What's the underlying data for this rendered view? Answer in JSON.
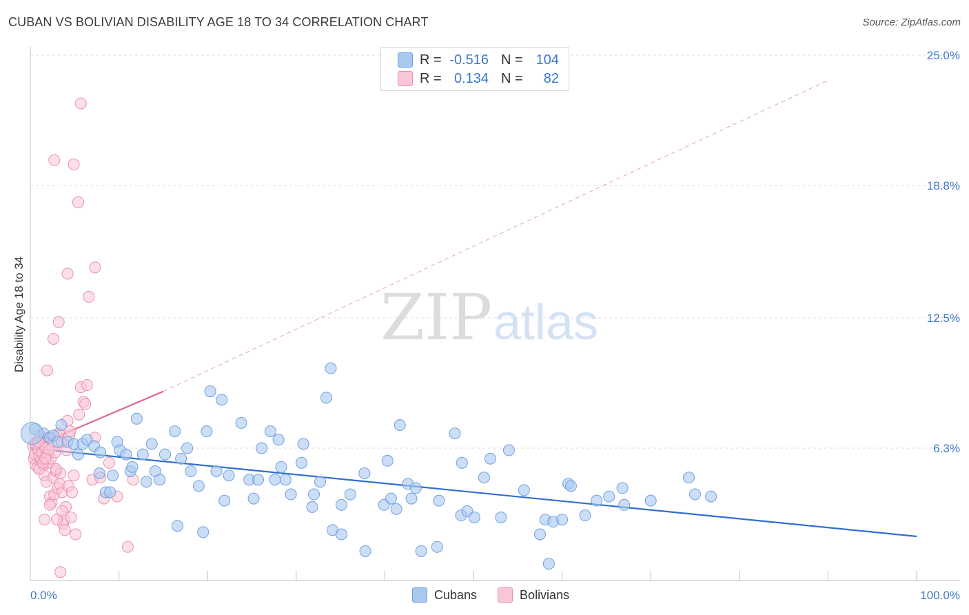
{
  "title": "CUBAN VS BOLIVIAN DISABILITY AGE 18 TO 34 CORRELATION CHART",
  "source": "Source: ZipAtlas.com",
  "watermark": {
    "zip": "ZIP",
    "atlas": "atlas"
  },
  "legend": {
    "rows": [
      {
        "r_label": "R =",
        "r_value": "-0.516",
        "n_label": "N =",
        "n_value": "104",
        "color": "#a9c8f0",
        "border": "#6fa0e0"
      },
      {
        "r_label": "R =",
        "r_value": "0.134",
        "n_label": "N =",
        "n_value": "82",
        "color": "#f9c6d6",
        "border": "#ec8faf"
      }
    ]
  },
  "bottom_legend": [
    {
      "label": "Cubans",
      "color": "#a9c8f0",
      "border": "#6fa0e0"
    },
    {
      "label": "Bolivians",
      "color": "#f9c6d6",
      "border": "#ec8faf"
    }
  ],
  "chart_data": {
    "type": "scatter",
    "title": "CUBAN VS BOLIVIAN DISABILITY AGE 18 TO 34 CORRELATION CHART",
    "xlabel": "",
    "ylabel": "Disability Age 18 to 34",
    "xlim": [
      0,
      100
    ],
    "ylim": [
      0,
      25
    ],
    "x_tick_labels": [
      "0.0%",
      "100.0%"
    ],
    "y_ticks": [
      6.3,
      12.5,
      18.8,
      25.0
    ],
    "y_tick_labels": [
      "6.3%",
      "12.5%",
      "18.8%",
      "25.0%"
    ],
    "grid": true,
    "series": [
      {
        "name": "Cubans",
        "color": "#6fa0e0",
        "fill": "#a9c8f0",
        "trend": {
          "x0": 0,
          "y0": 6.3,
          "x1": 100,
          "y1": 2.1,
          "color": "#2f6fcf"
        },
        "points": [
          [
            0.5,
            7.2
          ],
          [
            1.5,
            7.0
          ],
          [
            2.2,
            6.8
          ],
          [
            2.6,
            6.9
          ],
          [
            3.1,
            6.6
          ],
          [
            3.5,
            7.4
          ],
          [
            4.2,
            6.6
          ],
          [
            4.9,
            6.5
          ],
          [
            5.4,
            6.0
          ],
          [
            5.9,
            6.5
          ],
          [
            6.4,
            6.7
          ],
          [
            7.2,
            6.4
          ],
          [
            7.8,
            5.1
          ],
          [
            7.9,
            6.1
          ],
          [
            8.5,
            4.2
          ],
          [
            9.0,
            4.2
          ],
          [
            9.3,
            5.0
          ],
          [
            9.8,
            6.6
          ],
          [
            10.1,
            6.2
          ],
          [
            10.8,
            6.0
          ],
          [
            11.3,
            5.2
          ],
          [
            11.5,
            5.4
          ],
          [
            12.0,
            7.7
          ],
          [
            12.7,
            6.0
          ],
          [
            13.1,
            4.7
          ],
          [
            13.7,
            6.5
          ],
          [
            14.1,
            5.2
          ],
          [
            14.6,
            4.8
          ],
          [
            15.2,
            6.0
          ],
          [
            16.3,
            7.1
          ],
          [
            16.6,
            2.6
          ],
          [
            17.0,
            5.8
          ],
          [
            17.7,
            6.3
          ],
          [
            18.1,
            5.2
          ],
          [
            19.0,
            4.5
          ],
          [
            19.5,
            2.3
          ],
          [
            19.9,
            7.1
          ],
          [
            20.3,
            9.0
          ],
          [
            21.0,
            5.2
          ],
          [
            21.6,
            8.6
          ],
          [
            21.9,
            3.8
          ],
          [
            22.4,
            5.0
          ],
          [
            23.8,
            7.5
          ],
          [
            24.7,
            4.8
          ],
          [
            25.2,
            3.9
          ],
          [
            25.7,
            4.8
          ],
          [
            26.1,
            6.3
          ],
          [
            27.1,
            7.1
          ],
          [
            27.6,
            4.8
          ],
          [
            28.0,
            6.7
          ],
          [
            28.3,
            5.4
          ],
          [
            28.8,
            4.8
          ],
          [
            29.4,
            4.1
          ],
          [
            30.6,
            5.6
          ],
          [
            30.8,
            6.5
          ],
          [
            31.8,
            3.5
          ],
          [
            32.0,
            4.1
          ],
          [
            32.7,
            4.7
          ],
          [
            33.4,
            8.7
          ],
          [
            33.9,
            10.1
          ],
          [
            34.1,
            2.4
          ],
          [
            35.1,
            2.2
          ],
          [
            35.1,
            3.6
          ],
          [
            36.1,
            4.1
          ],
          [
            37.7,
            5.1
          ],
          [
            37.8,
            1.4
          ],
          [
            39.9,
            3.6
          ],
          [
            40.3,
            5.7
          ],
          [
            40.7,
            3.9
          ],
          [
            41.3,
            3.4
          ],
          [
            41.7,
            7.4
          ],
          [
            42.6,
            4.6
          ],
          [
            43.0,
            3.9
          ],
          [
            43.5,
            4.4
          ],
          [
            44.1,
            1.4
          ],
          [
            45.9,
            1.6
          ],
          [
            46.1,
            3.8
          ],
          [
            47.9,
            7.0
          ],
          [
            48.6,
            3.1
          ],
          [
            48.7,
            5.6
          ],
          [
            49.3,
            3.3
          ],
          [
            50.1,
            3.0
          ],
          [
            51.2,
            4.9
          ],
          [
            51.9,
            5.8
          ],
          [
            53.1,
            3.0
          ],
          [
            54.0,
            6.2
          ],
          [
            55.7,
            4.3
          ],
          [
            57.5,
            2.2
          ],
          [
            58.1,
            2.9
          ],
          [
            58.5,
            0.8
          ],
          [
            59.0,
            2.8
          ],
          [
            60.0,
            2.9
          ],
          [
            60.7,
            4.6
          ],
          [
            61.0,
            4.5
          ],
          [
            62.6,
            3.1
          ],
          [
            63.9,
            3.8
          ],
          [
            65.3,
            4.0
          ],
          [
            66.8,
            4.4
          ],
          [
            67.0,
            3.6
          ],
          [
            70.0,
            3.8
          ],
          [
            74.3,
            4.9
          ],
          [
            75.0,
            4.1
          ],
          [
            76.8,
            4.0
          ],
          [
            0.2,
            7.0
          ]
        ]
      },
      {
        "name": "Bolivians",
        "color": "#ec8faf",
        "fill": "#f9c6d6",
        "trend": {
          "x0": 0,
          "y0": 6.3,
          "x1": 15,
          "y1": 9.0,
          "dash_to_x": 90,
          "dash_to_y": 23.8,
          "color": "#e06890"
        },
        "points": [
          [
            0.3,
            6.4
          ],
          [
            0.4,
            5.8
          ],
          [
            0.5,
            6.0
          ],
          [
            0.6,
            5.5
          ],
          [
            0.7,
            6.6
          ],
          [
            0.8,
            5.4
          ],
          [
            0.9,
            6.2
          ],
          [
            1.0,
            5.9
          ],
          [
            1.1,
            6.9
          ],
          [
            1.2,
            5.7
          ],
          [
            1.3,
            6.1
          ],
          [
            1.4,
            6.7
          ],
          [
            1.5,
            5.5
          ],
          [
            1.6,
            5.0
          ],
          [
            1.7,
            6.3
          ],
          [
            1.8,
            4.7
          ],
          [
            1.9,
            6.0
          ],
          [
            2.0,
            5.6
          ],
          [
            2.1,
            6.8
          ],
          [
            2.2,
            4.0
          ],
          [
            2.3,
            5.8
          ],
          [
            2.4,
            3.7
          ],
          [
            2.5,
            6.4
          ],
          [
            2.6,
            4.9
          ],
          [
            2.7,
            4.1
          ],
          [
            2.8,
            6.1
          ],
          [
            2.9,
            5.2
          ],
          [
            3.0,
            6.9
          ],
          [
            3.1,
            4.4
          ],
          [
            3.2,
            7.0
          ],
          [
            3.3,
            4.6
          ],
          [
            3.4,
            5.1
          ],
          [
            3.5,
            6.6
          ],
          [
            3.6,
            4.2
          ],
          [
            3.7,
            2.7
          ],
          [
            3.8,
            2.9
          ],
          [
            3.9,
            2.4
          ],
          [
            4.0,
            3.5
          ],
          [
            4.1,
            6.2
          ],
          [
            4.2,
            7.6
          ],
          [
            4.3,
            4.5
          ],
          [
            4.4,
            6.9
          ],
          [
            4.5,
            7.1
          ],
          [
            4.7,
            4.2
          ],
          [
            4.9,
            5.0
          ],
          [
            5.1,
            2.2
          ],
          [
            5.5,
            7.9
          ],
          [
            5.7,
            9.2
          ],
          [
            6.0,
            8.5
          ],
          [
            6.2,
            8.4
          ],
          [
            6.4,
            9.3
          ],
          [
            7.0,
            4.8
          ],
          [
            7.3,
            6.8
          ],
          [
            7.9,
            4.9
          ],
          [
            8.3,
            3.9
          ],
          [
            8.9,
            5.6
          ],
          [
            9.8,
            4.0
          ],
          [
            11.0,
            1.6
          ],
          [
            11.6,
            4.8
          ],
          [
            3.2,
            12.3
          ],
          [
            2.6,
            11.5
          ],
          [
            2.7,
            20.0
          ],
          [
            4.9,
            19.8
          ],
          [
            5.4,
            18.0
          ],
          [
            5.7,
            22.7
          ],
          [
            4.2,
            14.6
          ],
          [
            7.3,
            14.9
          ],
          [
            6.6,
            13.5
          ],
          [
            1.9,
            10.0
          ],
          [
            3.4,
            0.4
          ],
          [
            1.6,
            2.9
          ],
          [
            2.2,
            3.6
          ],
          [
            3.0,
            2.9
          ],
          [
            3.6,
            3.3
          ],
          [
            4.6,
            3.0
          ],
          [
            2.9,
            5.3
          ],
          [
            1.0,
            5.3
          ],
          [
            0.6,
            6.5
          ],
          [
            1.4,
            5.6
          ],
          [
            2.1,
            6.2
          ],
          [
            0.9,
            6.6
          ],
          [
            1.7,
            5.8
          ]
        ]
      }
    ]
  }
}
